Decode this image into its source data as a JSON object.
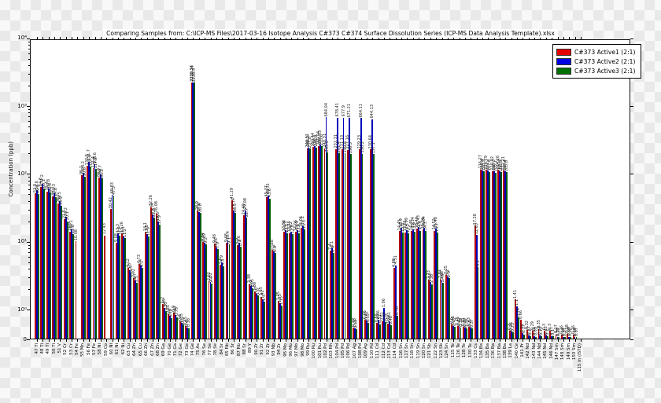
{
  "title": "Comparing Samples from: C:\\ICP-MS Files\\2017-03-16 Isotope Analysis C#373 C#374 Surface Dissolution Series (ICP-MS Data Analysis Template).xlsx",
  "axes": {
    "ylabel": "Concentration (ppb)",
    "yticks": [
      {
        "label": "10⁴",
        "value": 10000
      },
      {
        "label": "10³",
        "value": 1000
      },
      {
        "label": "10²",
        "value": 100
      },
      {
        "label": "10¹",
        "value": 10
      },
      {
        "label": "10⁰",
        "value": 1
      },
      {
        "label": "0",
        "value": 0
      }
    ]
  },
  "legend": {
    "entries": [
      {
        "label": "C#373 Active1 (2:1)",
        "color": "#e50000"
      },
      {
        "label": "C#373 Active2 (2:1)",
        "color": "#0000e5"
      },
      {
        "label": "C#373 Active3 (2:1)",
        "color": "#007000"
      }
    ]
  },
  "chart_data": {
    "type": "bar",
    "yscale": "symlog",
    "ylim": [
      0,
      10000
    ],
    "ylabel": "Concentration (ppb)",
    "legend_position": "upper right",
    "grid": false,
    "categories": [
      "47 Ti",
      "48 Ti",
      "49 Ti",
      "50 Ti",
      "51 V",
      "52 Cr",
      "53 Cr",
      "54 Fe",
      "55 Mn",
      "56 Fe",
      "57 Fe",
      "58 Ni",
      "59 Co",
      "60 Ni",
      "61 Ni",
      "62 Ni",
      "63 Cu",
      "64 Zn",
      "65 Cu",
      "66 Zn",
      "67 Zn",
      "68 Zn",
      "69 Ga",
      "70 Ge",
      "71 Ga",
      "72 Ge",
      "73 Ge",
      "74 Ge",
      "75 As",
      "76 Se",
      "77 Se",
      "78 Se",
      "84 Sr",
      "85 Rb",
      "86 Sr",
      "87 Rb",
      "88 Sr",
      "89 Y",
      "90 Zr",
      "91 Zr",
      "92 Zr",
      "93 Nb",
      "94 Zr",
      "95 Mo",
      "96 Mo",
      "97 Mo",
      "98 Mo",
      "99 Ru",
      "100 Ru",
      "101 Ru",
      "102 Pd",
      "103 Rh",
      "104 Pd",
      "105 Pd",
      "106 Pd",
      "107 Ag",
      "108 Pd",
      "109 Ag",
      "110 Pd",
      "111 Cd",
      "112 Cd",
      "113 Cd",
      "114 Cd",
      "116 Sn",
      "117 Sn",
      "118 Sn",
      "119 Sn",
      "120 Sn",
      "121 Sb",
      "122 Sn",
      "123 Sb",
      "124 Sn",
      "125 Te",
      "126 Te",
      "128 Te",
      "130 Te",
      "133 Cs",
      "134 Ba",
      "135 Ba",
      "136 Ba",
      "137 Ba",
      "138 Ba",
      "139 La",
      "140 Ce",
      "141 Pr",
      "142 Nd",
      "143 Nd",
      "144 Nd",
      "145 Nd",
      "146 Nd",
      "147 Sm",
      "148 Sm",
      "149 Sm",
      "150 Sm",
      "115 In (ISTD)"
    ],
    "series": [
      {
        "name": "C#373 Active1 (2:1)",
        "color": "#b30000",
        "values": [
          52.3,
          64.8,
          55.4,
          47.1,
          36.2,
          21.5,
          13.9,
          10.08,
          95.7,
          132.5,
          121.4,
          88.9,
          12.43,
          30.42,
          9.68,
          13.26,
          4.12,
          2.92,
          4.73,
          14.1,
          32.26,
          26.08,
          1.2,
          0.85,
          0.9,
          0.6,
          0.45,
          2239.34,
          28.9,
          9.84,
          2.62,
          9.48,
          4.6,
          9.68,
          41.29,
          8.9,
          24.49,
          2.38,
          1.86,
          1.55,
          45.37,
          7.68,
          1.35,
          13.96,
          13.45,
          14.06,
          16.06,
          240.51,
          250.44,
          260.04,
          240.31,
          7.4,
          232.31,
          231.13,
          227.16,
          0.39,
          229.23,
          0.65,
          230.64,
          0.56,
          0.61,
          0.52,
          4.08,
          14.45,
          13.81,
          14.45,
          15.43,
          15.04,
          2.73,
          14.52,
          2.84,
          3.25,
          0.5,
          0.45,
          0.41,
          0.43,
          17.28,
          116.27,
          114.79,
          110.92,
          114.26,
          112.21,
          0.3,
          1.41,
          0.66,
          0.32,
          0.29,
          0.35,
          0.3,
          0.3,
          0.17,
          0.16,
          0.18,
          0.16,
          null
        ]
      },
      {
        "name": "C#373 Active2 (2:1)",
        "color": "#0000b8",
        "values": [
          57.6,
          71.2,
          60.8,
          51.3,
          39.5,
          23.2,
          15.1,
          null,
          104.2,
          151.7,
          138.6,
          98.7,
          null,
          49.83,
          13.3,
          12.1,
          3.8,
          2.7,
          4.4,
          12.8,
          25.34,
          19.6,
          1.05,
          0.8,
          0.82,
          0.55,
          0.4,
          2230.14,
          27.6,
          9.69,
          2.52,
          8.26,
          4.9,
          10.4,
          29.14,
          9.6,
          29.08,
          2.2,
          1.7,
          1.42,
          48.31,
          7.2,
          1.25,
          14.8,
          14.2,
          14.9,
          17.1,
          245.3,
          256.1,
          270.33,
          684.04,
          8.1,
          678.41,
          677.9,
          671.21,
          0.38,
          664.11,
          0.62,
          644.13,
          0.66,
          1.06,
          0.61,
          4.51,
          15.9,
          14.99,
          15.34,
          16.43,
          16.04,
          2.55,
          15.48,
          2.66,
          3.1,
          0.46,
          0.42,
          0.39,
          0.4,
          12.63,
          112.4,
          111.2,
          108.3,
          110.8,
          109.4,
          0.26,
          1.1,
          0.21,
          0.12,
          0.11,
          0.13,
          0.12,
          0.11,
          0.08,
          0.08,
          0.09,
          0.08,
          null
        ]
      },
      {
        "name": "C#373 Active3 (2:1)",
        "color": "#005c00",
        "values": [
          49.9,
          60.1,
          52.6,
          44.8,
          33.9,
          20.1,
          12.8,
          null,
          90.6,
          128.3,
          117.2,
          85.2,
          null,
          47.5,
          12.4,
          11.2,
          3.5,
          2.5,
          4.1,
          11.9,
          22.8,
          17.9,
          0.95,
          0.72,
          0.75,
          0.5,
          0.38,
          2226.5,
          26.8,
          9.2,
          2.4,
          7.9,
          4.3,
          9.1,
          26.5,
          8.4,
          22.7,
          2.05,
          1.6,
          1.3,
          43.6,
          6.8,
          1.15,
          13.2,
          12.8,
          13.4,
          15.3,
          237.8,
          246.9,
          255.6,
          205.8,
          6.9,
          201.4,
          199.8,
          196.5,
          0.33,
          198.2,
          0.55,
          197.1,
          0.51,
          0.58,
          0.48,
          0.78,
          13.8,
          13.2,
          13.9,
          14.6,
          14.3,
          2.38,
          13.7,
          2.49,
          2.9,
          0.42,
          0.39,
          0.36,
          0.37,
          4.2,
          108.9,
          107.6,
          105.1,
          106.9,
          105.8,
          0.23,
          0.74,
          0.17,
          0.1,
          0.09,
          0.11,
          0.1,
          0.1,
          0.07,
          0.07,
          0.08,
          0.07,
          null
        ]
      }
    ]
  }
}
